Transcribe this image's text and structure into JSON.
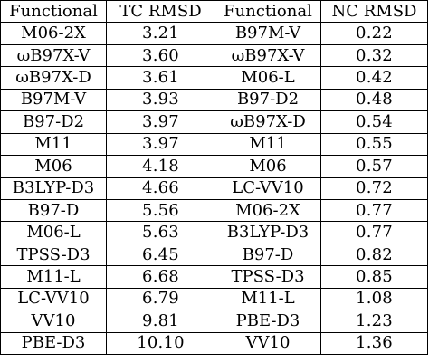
{
  "table": {
    "headers": [
      "Functional",
      "TC RMSD",
      "Functional",
      "NC RMSD"
    ],
    "rows": [
      [
        "M06-2X",
        "3.21",
        "B97M-V",
        "0.22"
      ],
      [
        "ωB97X-V",
        "3.60",
        "ωB97X-V",
        "0.32"
      ],
      [
        "ωB97X-D",
        "3.61",
        "M06-L",
        "0.42"
      ],
      [
        "B97M-V",
        "3.93",
        "B97-D2",
        "0.48"
      ],
      [
        "B97-D2",
        "3.97",
        "ωB97X-D",
        "0.54"
      ],
      [
        "M11",
        "3.97",
        "M11",
        "0.55"
      ],
      [
        "M06",
        "4.18",
        "M06",
        "0.57"
      ],
      [
        "B3LYP-D3",
        "4.66",
        "LC-VV10",
        "0.72"
      ],
      [
        "B97-D",
        "5.56",
        "M06-2X",
        "0.77"
      ],
      [
        "M06-L",
        "5.63",
        "B3LYP-D3",
        "0.77"
      ],
      [
        "TPSS-D3",
        "6.45",
        "B97-D",
        "0.82"
      ],
      [
        "M11-L",
        "6.68",
        "TPSS-D3",
        "0.85"
      ],
      [
        "LC-VV10",
        "6.79",
        "M11-L",
        "1.08"
      ],
      [
        "VV10",
        "9.81",
        "PBE-D3",
        "1.23"
      ],
      [
        "PBE-D3",
        "10.10",
        "VV10",
        "1.36"
      ]
    ]
  }
}
